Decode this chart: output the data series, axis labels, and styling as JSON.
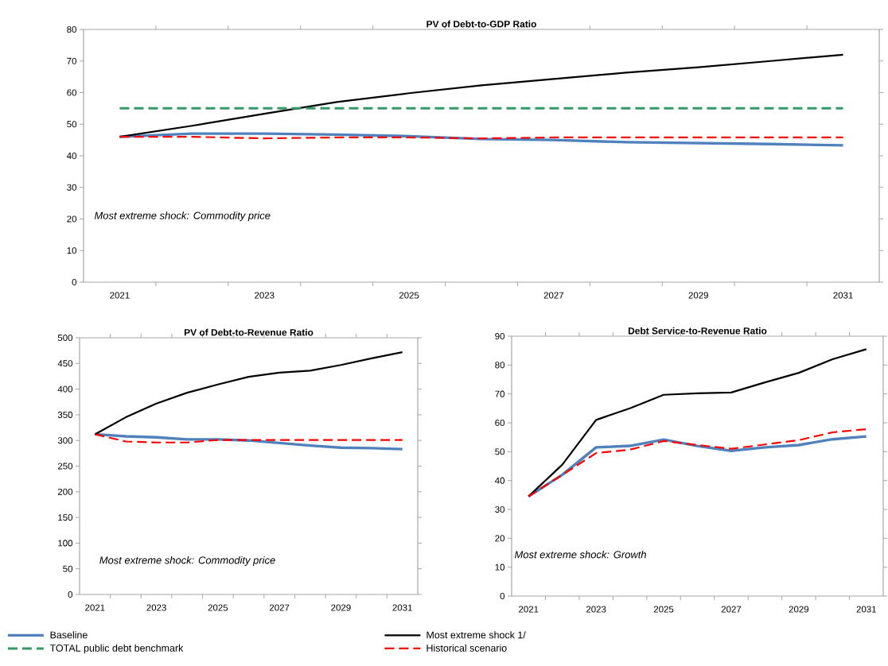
{
  "chart_data": [
    {
      "type": "line",
      "title": "PV of Debt-to-GDP  Ratio",
      "categories": [
        "2021",
        null,
        "2023",
        null,
        "2025",
        null,
        "2027",
        null,
        "2029",
        null,
        "2031"
      ],
      "ylim": [
        0,
        80
      ],
      "yticks": [
        0,
        10,
        20,
        30,
        40,
        50,
        60,
        70,
        80
      ],
      "annotations": [
        "Most extreme  shock:  Commodity  price"
      ],
      "legend": "bottom",
      "grid": false,
      "series": [
        {
          "name": "Baseline",
          "color": "#4f81bd",
          "line_style": "solid",
          "values": [
            46,
            47,
            47,
            46.7,
            46.2,
            45.3,
            45,
            44.3,
            44,
            43.7,
            43.3
          ]
        },
        {
          "name": "Most extreme shock 1/",
          "color": "#000000",
          "line_style": "solid",
          "values": [
            46,
            49.5,
            53.3,
            57,
            59.8,
            62.3,
            64.3,
            66.3,
            68,
            70,
            72
          ]
        },
        {
          "name": "TOTAL public debt benchmark",
          "color": "#339966",
          "line_style": "dashed",
          "values": [
            55,
            55,
            55,
            55,
            55,
            55,
            55,
            55,
            55,
            55,
            55
          ]
        },
        {
          "name": "Historical scenario",
          "color": "#ff0000",
          "line_style": "dashed",
          "values": [
            46,
            46,
            45.5,
            45.8,
            45.8,
            45.5,
            45.8,
            45.8,
            45.8,
            45.8,
            45.8
          ]
        }
      ]
    },
    {
      "type": "line",
      "title": "PV of Debt-to-Revenue  Ratio",
      "categories": [
        "2021",
        null,
        "2023",
        null,
        "2025",
        null,
        "2027",
        null,
        "2029",
        null,
        "2031"
      ],
      "ylim": [
        0,
        500
      ],
      "yticks": [
        0,
        50,
        100,
        150,
        200,
        250,
        300,
        350,
        400,
        450,
        500
      ],
      "annotations": [
        "Most extreme  shock:  Commodity  price"
      ],
      "grid": false,
      "series": [
        {
          "color": "#4f81bd",
          "line_style": "solid",
          "values": [
            312,
            308,
            306,
            302,
            302,
            300,
            295,
            290,
            286,
            285,
            283
          ]
        },
        {
          "color": "#000000",
          "line_style": "solid",
          "values": [
            312,
            345,
            372,
            393,
            409,
            424,
            432,
            436,
            447,
            460,
            472
          ]
        },
        {
          "color": "#ff0000",
          "line_style": "dashed",
          "values": [
            312,
            298,
            296,
            296,
            301,
            301,
            301,
            301,
            301,
            301,
            301
          ]
        }
      ]
    },
    {
      "type": "line",
      "title": "Debt Service-to-Revenue  Ratio",
      "categories": [
        "2021",
        null,
        "2023",
        null,
        "2025",
        null,
        "2027",
        null,
        "2029",
        null,
        "2031"
      ],
      "ylim": [
        0,
        90
      ],
      "yticks": [
        0,
        10,
        20,
        30,
        40,
        50,
        60,
        70,
        80,
        90
      ],
      "annotations": [
        "Most extreme  shock:  Growth"
      ],
      "grid": false,
      "series": [
        {
          "color": "#4f81bd",
          "line_style": "solid",
          "values": [
            34.5,
            42,
            51.5,
            52,
            54.2,
            52,
            50.3,
            51.5,
            52.3,
            54.3,
            55.3
          ]
        },
        {
          "color": "#000000",
          "line_style": "solid",
          "values": [
            34.5,
            45.5,
            61,
            65,
            69.7,
            70.2,
            70.5,
            74,
            77.3,
            82,
            85.5
          ]
        },
        {
          "color": "#ff0000",
          "line_style": "dashed",
          "values": [
            34.5,
            42,
            49.5,
            50.7,
            53.7,
            52.3,
            51,
            52.5,
            54,
            56.7,
            57.8
          ]
        }
      ]
    }
  ]
}
